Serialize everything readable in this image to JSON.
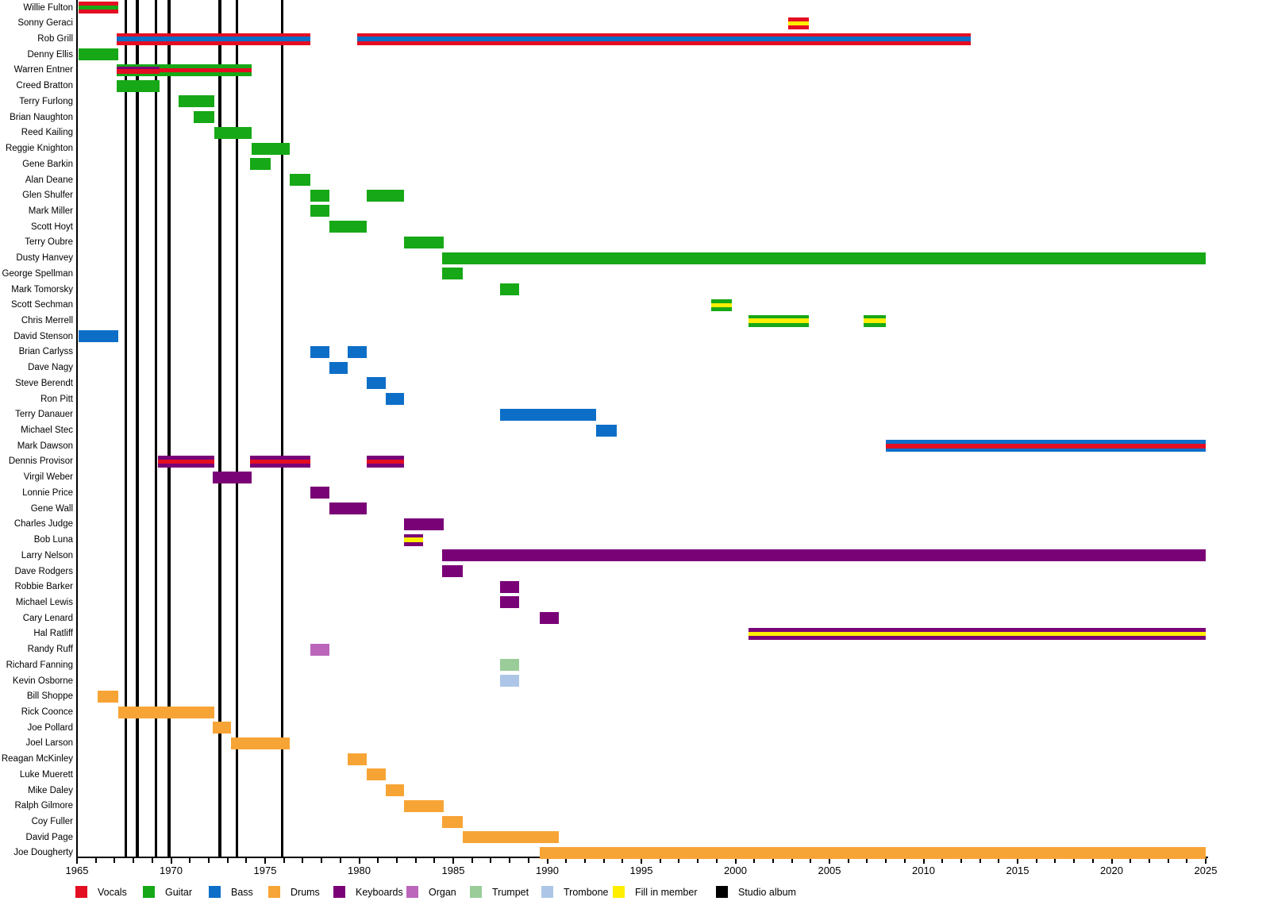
{
  "chart_data": {
    "type": "bar",
    "variant": "band-membership-timeline",
    "grid": false,
    "x_axis": {
      "min": 1965,
      "max": 2025,
      "minor_tick_interval": 1,
      "label_interval": 5,
      "tick_labels": [
        "1965",
        "1970",
        "1975",
        "1980",
        "1985",
        "1990",
        "1995",
        "2000",
        "2005",
        "2010",
        "2015",
        "2020",
        "2025"
      ]
    },
    "colors": {
      "vocals": "#e30e22",
      "guitar": "#17a817",
      "bass": "#0d6ec8",
      "drums": "#f7a436",
      "keyboards": "#7a0277",
      "organ": "#bb66bb",
      "trumpet": "#99cc99",
      "trombone": "#adc6e7",
      "fill": "#ffee00",
      "album": "#000000"
    },
    "legend": [
      {
        "id": "vocals",
        "label": "Vocals"
      },
      {
        "id": "guitar",
        "label": "Guitar"
      },
      {
        "id": "bass",
        "label": "Bass"
      },
      {
        "id": "drums",
        "label": "Drums"
      },
      {
        "id": "keyboards",
        "label": "Keyboards"
      },
      {
        "id": "organ",
        "label": "Organ"
      },
      {
        "id": "trumpet",
        "label": "Trumpet"
      },
      {
        "id": "trombone",
        "label": "Trombone"
      },
      {
        "id": "fill",
        "label": "Fill in member"
      },
      {
        "id": "album",
        "label": "Studio album"
      }
    ],
    "studio_albums": {
      "label": "Studio album",
      "years": [
        1967.6,
        1968.2,
        1969.2,
        1969.9,
        1972.6,
        1973.5,
        1975.9
      ]
    },
    "members": [
      {
        "name": "Willie Fulton",
        "role": "vocals",
        "lines": [
          "guitar"
        ],
        "periods": [
          [
            1965.1,
            1967.2
          ]
        ]
      },
      {
        "name": "Sonny Geraci",
        "role": "vocals",
        "lines": [
          "fill"
        ],
        "periods": [
          [
            2002.8,
            2003.9
          ]
        ]
      },
      {
        "name": "Rob Grill",
        "role": "vocals",
        "lines": [
          "bass"
        ],
        "periods": [
          [
            1967.1,
            1977.4
          ],
          [
            1979.9,
            2012.5
          ]
        ]
      },
      {
        "name": "Denny Ellis",
        "role": "guitar",
        "periods": [
          [
            1965.1,
            1967.2
          ]
        ]
      },
      {
        "name": "Warren Entner",
        "role": "guitar",
        "periods": [
          {
            "start": 1967.1,
            "end": 1969.4,
            "lines": [
              "keyboards",
              "vocals"
            ]
          },
          {
            "start": 1969.4,
            "end": 1974.3,
            "lines": [
              "vocals"
            ]
          }
        ]
      },
      {
        "name": "Creed Bratton",
        "role": "guitar",
        "periods": [
          [
            1967.1,
            1969.4
          ]
        ]
      },
      {
        "name": "Terry Furlong",
        "role": "guitar",
        "periods": [
          [
            1970.4,
            1972.3
          ]
        ]
      },
      {
        "name": "Brian Naughton",
        "role": "guitar",
        "periods": [
          [
            1971.2,
            1972.3
          ]
        ]
      },
      {
        "name": "Reed Kailing",
        "role": "guitar",
        "periods": [
          [
            1972.3,
            1974.3
          ]
        ]
      },
      {
        "name": "Reggie Knighton",
        "role": "guitar",
        "periods": [
          [
            1974.3,
            1976.3
          ]
        ]
      },
      {
        "name": "Gene Barkin",
        "role": "guitar",
        "periods": [
          [
            1974.2,
            1975.3
          ]
        ]
      },
      {
        "name": "Alan Deane",
        "role": "guitar",
        "periods": [
          [
            1976.3,
            1977.4
          ]
        ]
      },
      {
        "name": "Glen Shulfer",
        "role": "guitar",
        "periods": [
          [
            1977.4,
            1978.4
          ],
          [
            1980.4,
            1982.4
          ]
        ]
      },
      {
        "name": "Mark Miller",
        "role": "guitar",
        "periods": [
          [
            1977.4,
            1978.4
          ]
        ]
      },
      {
        "name": "Scott Hoyt",
        "role": "guitar",
        "periods": [
          [
            1978.4,
            1980.4
          ]
        ]
      },
      {
        "name": "Terry Oubre",
        "role": "guitar",
        "periods": [
          [
            1982.4,
            1984.5
          ]
        ]
      },
      {
        "name": "Dusty Hanvey",
        "role": "guitar",
        "periods": [
          [
            1984.4,
            2025
          ]
        ]
      },
      {
        "name": "George Spellman",
        "role": "guitar",
        "periods": [
          [
            1984.4,
            1985.5
          ]
        ]
      },
      {
        "name": "Mark Tomorsky",
        "role": "guitar",
        "periods": [
          [
            1987.5,
            1988.5
          ]
        ]
      },
      {
        "name": "Scott Sechman",
        "role": "guitar",
        "lines": [
          "fill"
        ],
        "periods": [
          [
            1998.7,
            1999.8
          ]
        ]
      },
      {
        "name": "Chris Merrell",
        "role": "guitar",
        "lines": [
          "fill"
        ],
        "periods": [
          [
            2000.7,
            2003.9
          ],
          [
            2006.8,
            2008.0
          ]
        ]
      },
      {
        "name": "David Stenson",
        "role": "bass",
        "periods": [
          [
            1965.1,
            1967.2
          ]
        ]
      },
      {
        "name": "Brian Carlyss",
        "role": "bass",
        "periods": [
          [
            1977.4,
            1978.4
          ],
          [
            1979.4,
            1980.4
          ]
        ]
      },
      {
        "name": "Dave Nagy",
        "role": "bass",
        "periods": [
          [
            1978.4,
            1979.4
          ]
        ]
      },
      {
        "name": "Steve Berendt",
        "role": "bass",
        "periods": [
          [
            1980.4,
            1981.4
          ]
        ]
      },
      {
        "name": "Ron Pitt",
        "role": "bass",
        "periods": [
          [
            1981.4,
            1982.4
          ]
        ]
      },
      {
        "name": "Terry Danauer",
        "role": "bass",
        "periods": [
          [
            1987.5,
            1992.6
          ]
        ]
      },
      {
        "name": "Michael Stec",
        "role": "bass",
        "periods": [
          [
            1992.6,
            1993.7
          ]
        ]
      },
      {
        "name": "Mark Dawson",
        "role": "bass",
        "lines": [
          "vocals"
        ],
        "periods": [
          [
            2008.0,
            2025
          ]
        ]
      },
      {
        "name": "Dennis Provisor",
        "role": "keyboards",
        "lines": [
          "vocals"
        ],
        "periods": [
          [
            1969.3,
            1972.3
          ],
          [
            1974.2,
            1977.4
          ],
          [
            1980.4,
            1982.4
          ]
        ]
      },
      {
        "name": "Virgil Weber",
        "role": "keyboards",
        "periods": [
          [
            1972.2,
            1974.3
          ]
        ]
      },
      {
        "name": "Lonnie Price",
        "role": "keyboards",
        "periods": [
          [
            1977.4,
            1978.4
          ]
        ]
      },
      {
        "name": "Gene Wall",
        "role": "keyboards",
        "periods": [
          [
            1978.4,
            1980.4
          ]
        ]
      },
      {
        "name": "Charles Judge",
        "role": "keyboards",
        "periods": [
          [
            1982.4,
            1984.5
          ]
        ]
      },
      {
        "name": "Bob Luna",
        "role": "keyboards",
        "lines": [
          "fill"
        ],
        "periods": [
          [
            1982.4,
            1983.4
          ]
        ]
      },
      {
        "name": "Larry Nelson",
        "role": "keyboards",
        "periods": [
          [
            1984.4,
            2025
          ]
        ]
      },
      {
        "name": "Dave Rodgers",
        "role": "keyboards",
        "periods": [
          [
            1984.4,
            1985.5
          ]
        ]
      },
      {
        "name": "Robbie Barker",
        "role": "keyboards",
        "periods": [
          [
            1987.5,
            1988.5
          ]
        ]
      },
      {
        "name": "Michael Lewis",
        "role": "keyboards",
        "periods": [
          [
            1987.5,
            1988.5
          ]
        ]
      },
      {
        "name": "Cary Lenard",
        "role": "keyboards",
        "periods": [
          [
            1989.6,
            1990.6
          ]
        ]
      },
      {
        "name": "Hal Ratliff",
        "role": "keyboards",
        "lines": [
          "fill"
        ],
        "periods": [
          [
            2000.7,
            2025
          ]
        ]
      },
      {
        "name": "Randy Ruff",
        "role": "organ",
        "periods": [
          [
            1977.4,
            1978.4
          ]
        ]
      },
      {
        "name": "Richard Fanning",
        "role": "trumpet",
        "periods": [
          [
            1987.5,
            1988.5
          ]
        ]
      },
      {
        "name": "Kevin Osborne",
        "role": "trombone",
        "periods": [
          [
            1987.5,
            1988.5
          ]
        ]
      },
      {
        "name": "Bill Shoppe",
        "role": "drums",
        "periods": [
          [
            1966.1,
            1967.2
          ]
        ]
      },
      {
        "name": "Rick Coonce",
        "role": "drums",
        "periods": [
          [
            1967.2,
            1972.3
          ]
        ]
      },
      {
        "name": "Joe Pollard",
        "role": "drums",
        "periods": [
          [
            1972.2,
            1973.2
          ]
        ]
      },
      {
        "name": "Joel Larson",
        "role": "drums",
        "periods": [
          [
            1973.2,
            1976.3
          ]
        ]
      },
      {
        "name": "Reagan McKinley",
        "role": "drums",
        "periods": [
          [
            1979.4,
            1980.4
          ]
        ]
      },
      {
        "name": "Luke Muerett",
        "role": "drums",
        "periods": [
          [
            1980.4,
            1981.4
          ]
        ]
      },
      {
        "name": "Mike Daley",
        "role": "drums",
        "periods": [
          [
            1981.4,
            1982.4
          ]
        ]
      },
      {
        "name": "Ralph Gilmore",
        "role": "drums",
        "periods": [
          [
            1982.4,
            1984.5
          ]
        ]
      },
      {
        "name": "Coy Fuller",
        "role": "drums",
        "periods": [
          [
            1984.4,
            1985.5
          ]
        ]
      },
      {
        "name": "David Page",
        "role": "drums",
        "periods": [
          [
            1985.5,
            1990.6
          ]
        ]
      },
      {
        "name": "Joe Dougherty",
        "role": "drums",
        "periods": [
          [
            1989.6,
            2025
          ]
        ]
      }
    ]
  }
}
